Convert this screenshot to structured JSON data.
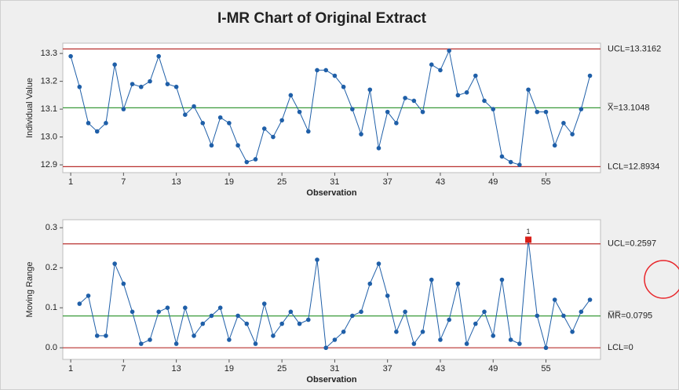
{
  "title": "I-MR Chart of Original Extract",
  "chart_data": [
    {
      "type": "line",
      "y_label": "Individual Value",
      "x_label": "Observation",
      "xlim": [
        0.1,
        61.2
      ],
      "ylim": [
        12.872,
        13.337
      ],
      "xticks": [
        1,
        7,
        13,
        19,
        25,
        31,
        37,
        43,
        49,
        55
      ],
      "yticks": [
        12.9,
        {
          "value": 13,
          "label": "13.0"
        },
        13.1,
        13.2,
        13.3
      ],
      "control_lines": [
        {
          "value": 13.3162,
          "label": "UCL=13.3162",
          "color": "#b8312f"
        },
        {
          "value": 13.1048,
          "label": "X̅=13.1048",
          "color": "#3a9a3a"
        },
        {
          "value": 12.8934,
          "label": "LCL=12.8934",
          "color": "#b8312f"
        }
      ],
      "series": [
        {
          "color": "#1f5fa8",
          "x": [
            1,
            2,
            3,
            4,
            5,
            6,
            7,
            8,
            9,
            10,
            11,
            12,
            13,
            14,
            15,
            16,
            17,
            18,
            19,
            20,
            21,
            22,
            23,
            24,
            25,
            26,
            27,
            28,
            29,
            30,
            31,
            32,
            33,
            34,
            35,
            36,
            37,
            38,
            39,
            40,
            41,
            42,
            43,
            44,
            45,
            46,
            47,
            48,
            49,
            50,
            51,
            52,
            53,
            54,
            55,
            56,
            57,
            58,
            59,
            60
          ],
          "values": [
            13.29,
            13.18,
            13.05,
            13.02,
            13.05,
            13.26,
            13.1,
            13.19,
            13.18,
            13.2,
            13.29,
            13.19,
            13.18,
            13.08,
            13.11,
            13.05,
            12.97,
            13.07,
            13.05,
            12.97,
            12.91,
            12.92,
            13.03,
            13.0,
            13.06,
            13.15,
            13.09,
            13.02,
            13.24,
            13.24,
            13.22,
            13.18,
            13.1,
            13.01,
            13.17,
            12.96,
            13.09,
            13.05,
            13.14,
            13.13,
            13.09,
            13.26,
            13.24,
            13.31,
            13.15,
            13.16,
            13.22,
            13.13,
            13.1,
            12.93,
            12.91,
            12.9,
            13.17,
            13.09,
            13.09,
            12.97,
            13.05,
            13.01,
            13.1,
            13.22
          ]
        }
      ]
    },
    {
      "type": "line",
      "y_label": "Moving Range",
      "x_label": "Observation",
      "xlim": [
        0.1,
        61.2
      ],
      "ylim": [
        -0.029,
        0.32
      ],
      "xticks": [
        1,
        7,
        13,
        19,
        25,
        31,
        37,
        43,
        49,
        55
      ],
      "yticks": [
        {
          "value": 0,
          "label": "0.0"
        },
        0.1,
        0.2,
        0.3
      ],
      "control_lines": [
        {
          "value": 0.2597,
          "label": "UCL=0.2597",
          "color": "#b8312f"
        },
        {
          "value": 0.0795,
          "label": "M̅R̅=0.0795",
          "color": "#3a9a3a"
        },
        {
          "value": 0,
          "label": "LCL=0",
          "color": "#b8312f"
        }
      ],
      "test_failures": [
        {
          "x": 53,
          "label": "1",
          "color": "#d91e18"
        }
      ],
      "series": [
        {
          "color": "#1f5fa8",
          "x": [
            2,
            3,
            4,
            5,
            6,
            7,
            8,
            9,
            10,
            11,
            12,
            13,
            14,
            15,
            16,
            17,
            18,
            19,
            20,
            21,
            22,
            23,
            24,
            25,
            26,
            27,
            28,
            29,
            30,
            31,
            32,
            33,
            34,
            35,
            36,
            37,
            38,
            39,
            40,
            41,
            42,
            43,
            44,
            45,
            46,
            47,
            48,
            49,
            50,
            51,
            52,
            53,
            54,
            55,
            56,
            57,
            58,
            59,
            60
          ],
          "values": [
            0.11,
            0.13,
            0.03,
            0.03,
            0.21,
            0.16,
            0.09,
            0.01,
            0.02,
            0.09,
            0.1,
            0.01,
            0.1,
            0.03,
            0.06,
            0.08,
            0.1,
            0.02,
            0.08,
            0.06,
            0.01,
            0.11,
            0.03,
            0.06,
            0.09,
            0.06,
            0.07,
            0.22,
            0.0,
            0.02,
            0.04,
            0.08,
            0.09,
            0.16,
            0.21,
            0.13,
            0.04,
            0.09,
            0.01,
            0.04,
            0.17,
            0.02,
            0.07,
            0.16,
            0.01,
            0.06,
            0.09,
            0.03,
            0.17,
            0.02,
            0.01,
            0.27,
            0.08,
            0.0,
            0.12,
            0.08,
            0.04,
            0.09,
            0.12
          ]
        }
      ]
    }
  ]
}
